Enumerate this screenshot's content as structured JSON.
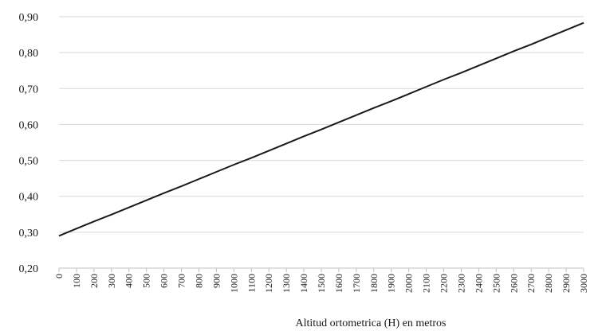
{
  "chart_data": {
    "type": "line",
    "title": "",
    "xlabel": "Altitud ortometrica  (H) en metros",
    "ylabel": "",
    "x": [
      0,
      100,
      200,
      300,
      400,
      500,
      600,
      700,
      800,
      900,
      1000,
      1100,
      1200,
      1300,
      1400,
      1500,
      1600,
      1700,
      1800,
      1900,
      2000,
      2100,
      2200,
      2300,
      2400,
      2500,
      2600,
      2700,
      2800,
      2900,
      3000
    ],
    "x_tick_labels": [
      "0",
      "100",
      "200",
      "300",
      "400",
      "500",
      "600",
      "700",
      "800",
      "900",
      "1000",
      "1100",
      "1200",
      "1300",
      "1400",
      "1500",
      "1600",
      "1700",
      "1800",
      "1900",
      "2000",
      "2100",
      "2200",
      "2300",
      "2400",
      "2500",
      "2600",
      "2700",
      "2800",
      "2900",
      "3000"
    ],
    "series": [
      {
        "values": [
          0.29,
          0.31,
          0.33,
          0.349,
          0.369,
          0.389,
          0.409,
          0.428,
          0.448,
          0.468,
          0.488,
          0.507,
          0.527,
          0.547,
          0.567,
          0.586,
          0.606,
          0.626,
          0.646,
          0.665,
          0.685,
          0.705,
          0.725,
          0.744,
          0.764,
          0.784,
          0.804,
          0.823,
          0.843,
          0.863,
          0.883
        ],
        "color": "#1a1a1a"
      }
    ],
    "y_ticks": [
      0.2,
      0.3,
      0.4,
      0.5,
      0.6,
      0.7,
      0.8,
      0.9
    ],
    "y_tick_labels": [
      "0,20",
      "0,30",
      "0,40",
      "0,50",
      "0,60",
      "0,70",
      "0,80",
      "0,90"
    ],
    "ylim": [
      0.2,
      0.9
    ],
    "xlim": [
      0,
      3000
    ],
    "grid": true,
    "legend": "none"
  }
}
